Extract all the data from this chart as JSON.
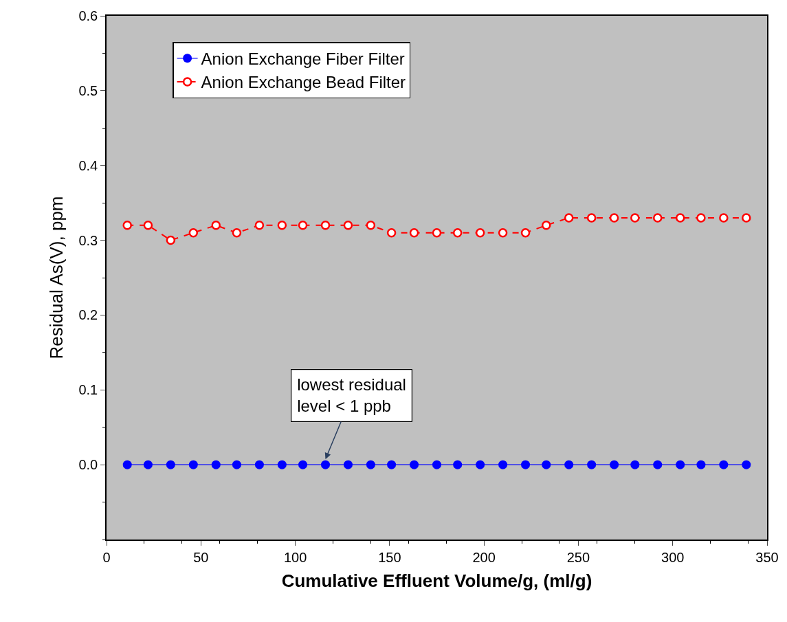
{
  "chart_data": {
    "type": "line",
    "xlabel": "Cumulative Effluent Volume/g, (ml/g)",
    "ylabel": "Residual As(V), ppm",
    "x": [
      11,
      22,
      34,
      46,
      58,
      69,
      81,
      93,
      104,
      116,
      128,
      140,
      151,
      163,
      175,
      186,
      198,
      210,
      222,
      233,
      245,
      257,
      269,
      280,
      292,
      304,
      315,
      327,
      339
    ],
    "series": [
      {
        "name": "Anion Exchange Fiber Filter",
        "color": "#0000ff",
        "marker": "circle",
        "line_style": "solid",
        "values": [
          0,
          0,
          0,
          0,
          0,
          0,
          0,
          0,
          0,
          0,
          0,
          0,
          0,
          0,
          0,
          0,
          0,
          0,
          0,
          0,
          0,
          0,
          0,
          0,
          0,
          0,
          0,
          0,
          0
        ]
      },
      {
        "name": "Anion Exchange Bead Filter",
        "color": "#ff0000",
        "marker": "circle",
        "line_style": "dashed",
        "values": [
          0.32,
          0.32,
          0.3,
          0.31,
          0.32,
          0.31,
          0.32,
          0.32,
          0.32,
          0.32,
          0.32,
          0.32,
          0.31,
          0.31,
          0.31,
          0.31,
          0.31,
          0.31,
          0.31,
          0.32,
          0.33,
          0.33,
          0.33,
          0.33,
          0.33,
          0.33,
          0.33,
          0.33,
          0.33
        ]
      }
    ],
    "xlim": [
      0,
      350
    ],
    "xticks": [
      0,
      50,
      100,
      150,
      200,
      250,
      300,
      350
    ],
    "ylim": [
      -0.1,
      0.6
    ],
    "yticks": [
      {
        "value": 0,
        "label": "0.0"
      },
      0.1,
      0.2,
      0.3,
      0.4,
      0.5,
      0.6
    ],
    "grid": false,
    "legend": "top left",
    "annotations": [
      {
        "text": "lowest residual\nlevel < 1 ppb",
        "x": 116,
        "y": 0
      }
    ]
  }
}
